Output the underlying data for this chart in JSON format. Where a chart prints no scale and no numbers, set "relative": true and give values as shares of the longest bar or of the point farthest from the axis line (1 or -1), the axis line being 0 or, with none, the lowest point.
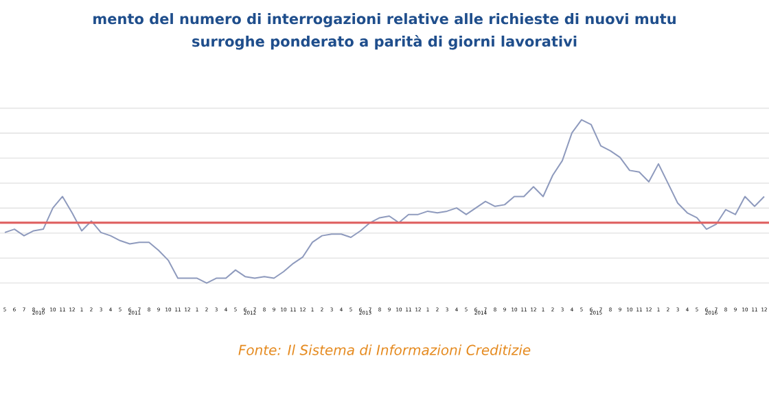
{
  "chart_data": {
    "type": "line",
    "title": "mento del numero di interrogazioni relative alle richieste di nuovi mutu",
    "subtitle": "surroghe ponderato a parità di giorni lavorativi",
    "relative": true,
    "grid": "y",
    "marker": "none",
    "line_style": "solid",
    "categories": [
      "5",
      "6",
      "7",
      "8",
      "9",
      "10",
      "11",
      "12",
      "1",
      "2",
      "3",
      "4",
      "5",
      "6",
      "7",
      "8",
      "9",
      "10",
      "11",
      "12",
      "1",
      "2",
      "3",
      "4",
      "5",
      "6",
      "7",
      "8",
      "9",
      "10",
      "11",
      "12",
      "1",
      "2",
      "3",
      "4",
      "5",
      "6",
      "7",
      "8",
      "9",
      "10",
      "11",
      "12",
      "1",
      "2",
      "3",
      "4",
      "5",
      "6",
      "7",
      "8",
      "9",
      "10",
      "11",
      "12",
      "1",
      "2",
      "3",
      "4",
      "5",
      "6",
      "7",
      "8",
      "9",
      "10",
      "11",
      "12",
      "1",
      "2",
      "3",
      "4",
      "5",
      "6",
      "7",
      "8",
      "9",
      "10",
      "11",
      "12"
    ],
    "series": [
      {
        "color": "#8e9abd",
        "values": [
          0.31,
          0.33,
          0.29,
          0.32,
          0.33,
          0.46,
          0.53,
          0.43,
          0.32,
          0.38,
          0.31,
          0.29,
          0.26,
          0.24,
          0.25,
          0.25,
          0.2,
          0.14,
          0.03,
          0.03,
          0.03,
          0,
          0.03,
          0.03,
          0.08,
          0.04,
          0.03,
          0.04,
          0.03,
          0.07,
          0.12,
          0.16,
          0.25,
          0.29,
          0.3,
          0.3,
          0.28,
          0.32,
          0.37,
          0.4,
          0.41,
          0.37,
          0.42,
          0.42,
          0.44,
          0.43,
          0.44,
          0.46,
          0.42,
          0.46,
          0.5,
          0.47,
          0.48,
          0.53,
          0.53,
          0.59,
          0.53,
          0.66,
          0.75,
          0.92,
          1,
          0.97,
          0.84,
          0.81,
          0.77,
          0.69,
          0.68,
          0.62,
          0.73,
          0.61,
          0.49,
          0.43,
          0.4,
          0.33,
          0.36,
          0.45,
          0.42,
          0.53,
          0.47,
          0.53
        ]
      }
    ],
    "ref_lines": [
      {
        "axis": "y",
        "value": 0.37,
        "color": "#e06666"
      }
    ],
    "annotations": [
      "2010",
      "2011",
      "2012",
      "2013",
      "2014",
      "2015",
      "2016",
      "Fonte: Il Sistema di Informazioni Creditizie"
    ]
  }
}
